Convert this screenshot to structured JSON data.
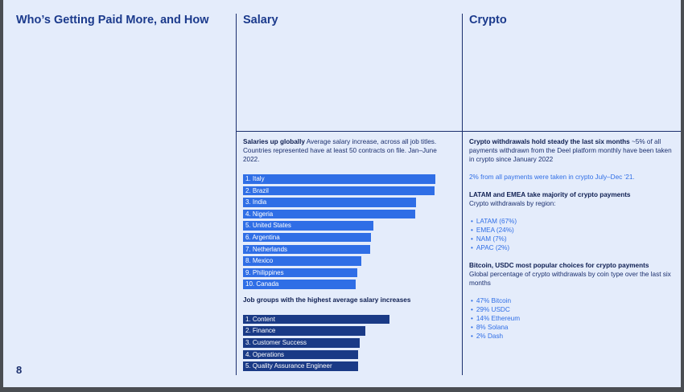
{
  "page": {
    "title": "Who’s Getting Paid More, and How",
    "number": "8"
  },
  "salary": {
    "heading": "Salary",
    "intro_bold": "Salaries up globally",
    "intro_text": " Average salary increase, across all job titles. Countries represented have at least 50 contracts on file. Jan–June 2022.",
    "country_bars": [
      {
        "label": "1. Italy",
        "value": 100
      },
      {
        "label": "2. Brazil",
        "value": 99.5
      },
      {
        "label": "3. India",
        "value": 90
      },
      {
        "label": "4. Nigeria",
        "value": 89.6
      },
      {
        "label": "5. United States",
        "value": 67.7
      },
      {
        "label": "6. Argentina",
        "value": 66.4
      },
      {
        "label": "7. Netherlands",
        "value": 65.9
      },
      {
        "label": "8. Mexico",
        "value": 61.6
      },
      {
        "label": "9. Philippines",
        "value": 59.4
      },
      {
        "label": "10. Canada",
        "value": 58.5
      }
    ],
    "jobs_heading": "Job groups with the highest average salary increases",
    "job_bars": [
      {
        "label": "1. Content",
        "value": 76
      },
      {
        "label": "2. Finance",
        "value": 63.4
      },
      {
        "label": "3. Customer Success",
        "value": 60.5
      },
      {
        "label": "4. Operations",
        "value": 59.7
      },
      {
        "label": "5. Quality Assurance Engineer",
        "value": 59.7
      }
    ],
    "bar_colors": {
      "country": "#2f6ee6",
      "job": "#1a3a86"
    }
  },
  "crypto": {
    "heading": "Crypto",
    "p1_bold": "Crypto withdrawals hold steady the last six months",
    "p1_text": "  ~5% of all payments withdrawn from the Deel platform monthly have been taken in crypto since January 2022",
    "p2": "2% from all payments were taken in crypto July–Dec ‘21.",
    "region_heading": "LATAM and EMEA take majority of crypto payments",
    "region_sub": "Crypto withdrawals by region:",
    "regions": [
      "LATAM (67%)",
      "EMEA (24%)",
      "NAM (7%)",
      "APAC (2%)"
    ],
    "coin_heading": "Bitcoin, USDC most popular choices for crypto payments",
    "coin_sub": "Global percentage of crypto withdrawals by coin type over the last six months",
    "coins": [
      "47% Bitcoin",
      "29% USDC",
      "14% Ethereum",
      "8% Solana",
      "2% Dash"
    ],
    "accent_color": "#2f6ee6"
  }
}
